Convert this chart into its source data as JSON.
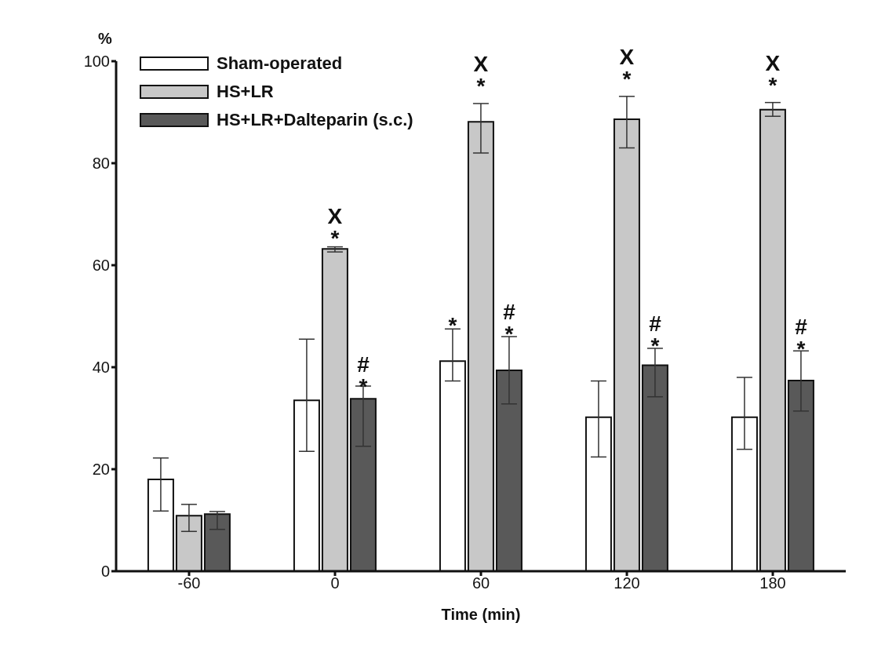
{
  "chart_data": {
    "type": "bar",
    "xlabel": "Time (min)",
    "ylabel": "%",
    "categories": [
      "-60",
      "0",
      "60",
      "120",
      "180"
    ],
    "series": [
      {
        "name": "Sham-operated",
        "color": "#ffffff",
        "values": [
          18,
          33.5,
          41.2,
          30.2,
          30.2
        ],
        "errors": [
          [
            11.8,
            22.2
          ],
          [
            23.5,
            45.5
          ],
          [
            37.3,
            47.5
          ],
          [
            22.4,
            37.3
          ],
          [
            23.9,
            38
          ]
        ],
        "value_labels": [
          null,
          null,
          "*",
          null,
          null
        ]
      },
      {
        "name": "HS+LR",
        "color": "#c8c8c8",
        "values": [
          10.9,
          63.2,
          88.1,
          88.6,
          90.5
        ],
        "errors": [
          [
            7.8,
            13.1
          ],
          [
            62.6,
            63.6
          ],
          [
            82,
            91.7
          ],
          [
            83,
            93.1
          ],
          [
            89.2,
            91.9
          ]
        ],
        "value_labels": [
          null,
          "X\n*",
          "X\n*",
          "X\n*",
          "X\n*"
        ]
      },
      {
        "name": "HS+LR+Dalteparin (s.c.)",
        "color": "#595959",
        "values": [
          11.2,
          33.8,
          39.4,
          40.4,
          37.4
        ],
        "errors": [
          [
            8.2,
            11.7
          ],
          [
            24.5,
            36.3
          ],
          [
            32.8,
            46
          ],
          [
            34.2,
            43.7
          ],
          [
            31.4,
            43.2
          ]
        ],
        "value_labels": [
          null,
          "#\n*",
          "#\n*",
          "#\n*",
          "#\n*"
        ]
      }
    ],
    "ylim": [
      0,
      100
    ],
    "yticks": [
      0,
      20,
      40,
      60,
      80,
      100
    ],
    "legend": "top left"
  }
}
